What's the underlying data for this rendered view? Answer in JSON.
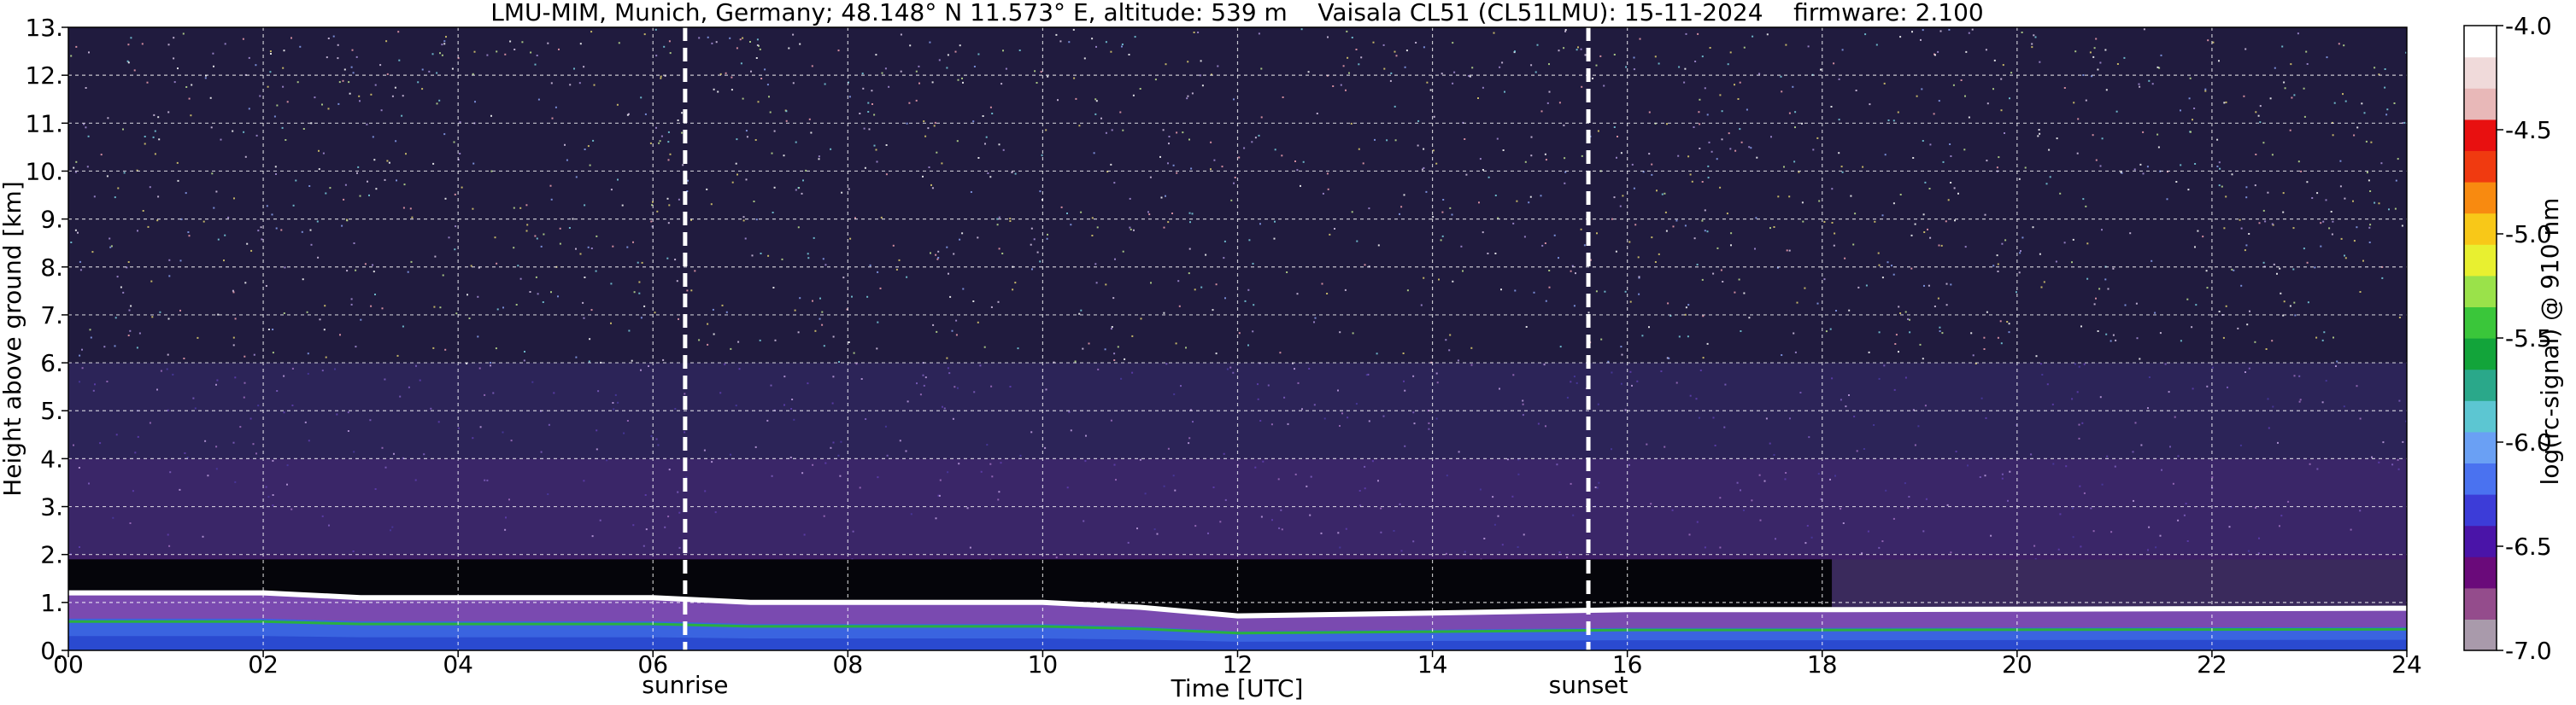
{
  "chart_data": {
    "type": "heatmap",
    "title": "LMU-MIM, Munich, Germany; 48.148° N 11.573° E, altitude: 539 m    Vaisala CL51 (CL51LMU): 15-11-2024    firmware: 2.100",
    "xlabel": "Time [UTC]",
    "ylabel": "Height above ground [km]",
    "xlim": [
      0,
      24
    ],
    "ylim": [
      0,
      13
    ],
    "x_ticks": [
      0,
      2,
      4,
      6,
      8,
      10,
      12,
      14,
      16,
      18,
      20,
      22,
      24
    ],
    "x_tick_labels": [
      "00",
      "02",
      "04",
      "06",
      "08",
      "10",
      "12",
      "14",
      "16",
      "18",
      "20",
      "22",
      "24"
    ],
    "y_ticks": [
      0,
      1,
      2,
      3,
      4,
      5,
      6,
      7,
      8,
      9,
      10,
      11,
      12,
      13
    ],
    "y_tick_labels": [
      "0.",
      "1.",
      "2.",
      "3.",
      "4.",
      "5.",
      "6.",
      "7.",
      "8.",
      "9.",
      "10.",
      "11.",
      "12.",
      "13."
    ],
    "grid": true,
    "events": [
      {
        "name": "sunrise",
        "x": 6.33
      },
      {
        "name": "sunset",
        "x": 15.6
      }
    ],
    "boundary_layer_top_km": [
      {
        "x": 0,
        "y": 1.2
      },
      {
        "x": 2,
        "y": 1.2
      },
      {
        "x": 3,
        "y": 1.1
      },
      {
        "x": 6,
        "y": 1.1
      },
      {
        "x": 7,
        "y": 1.0
      },
      {
        "x": 10,
        "y": 1.0
      },
      {
        "x": 11,
        "y": 0.9
      },
      {
        "x": 12,
        "y": 0.72
      },
      {
        "x": 14,
        "y": 0.78
      },
      {
        "x": 16,
        "y": 0.85
      },
      {
        "x": 18,
        "y": 0.85
      },
      {
        "x": 24,
        "y": 0.88
      }
    ],
    "colorbar": {
      "label": "log(rc-signal) @ 910 nm",
      "range": [
        -7.0,
        -4.0
      ],
      "tick_labels": [
        "-4.0",
        "-4.5",
        "-5.0",
        "-5.5",
        "-6.0",
        "-6.5",
        "-7.0"
      ],
      "tick_values": [
        -4.0,
        -4.5,
        -5.0,
        -5.5,
        -6.0,
        -6.5,
        -7.0
      ],
      "colors": [
        "#a99aab",
        "#944c8c",
        "#6a0a7a",
        "#4a14a8",
        "#3c3cd8",
        "#4a72f0",
        "#6aa0f4",
        "#5cc6d2",
        "#2aa88a",
        "#12a43a",
        "#3ac63a",
        "#9ae24a",
        "#e8f030",
        "#f8c818",
        "#f88a10",
        "#f03a10",
        "#e81010",
        "#e8b8b8",
        "#f0dada",
        "#ffffff"
      ]
    }
  }
}
